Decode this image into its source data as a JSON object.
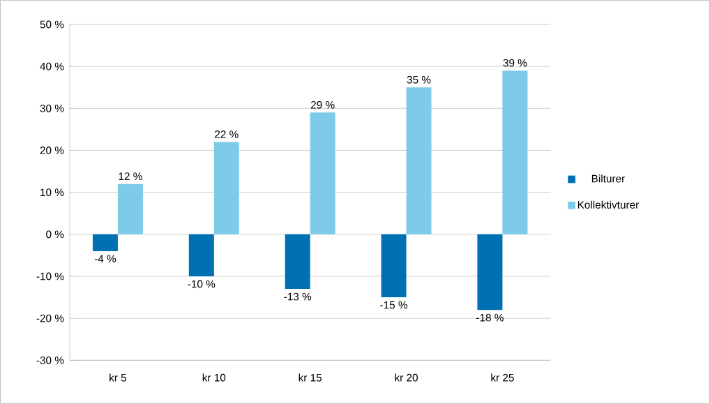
{
  "chart_data": {
    "type": "bar",
    "categories": [
      "kr 5",
      "kr 10",
      "kr 15",
      "kr 20",
      "kr 25"
    ],
    "series": [
      {
        "name": "Bilturer",
        "color": "#0070b5",
        "values": [
          -4,
          -10,
          -13,
          -15,
          -18
        ],
        "value_labels": [
          "-4 %",
          "-10 %",
          "-13 %",
          "-15 %",
          "-18 %"
        ]
      },
      {
        "name": "Kollektivturer",
        "color": "#7dcbe8",
        "values": [
          12,
          22,
          29,
          35,
          39
        ],
        "value_labels": [
          "12 %",
          "22 %",
          "29 %",
          "35 %",
          "39 %"
        ]
      }
    ],
    "ylim": [
      -30,
      50
    ],
    "yticks": [
      {
        "value": -30,
        "label": "-30 %"
      },
      {
        "value": -20,
        "label": "-20 %"
      },
      {
        "value": -10,
        "label": "-10 %"
      },
      {
        "value": 0,
        "label": "0 %"
      },
      {
        "value": 10,
        "label": "10 %"
      },
      {
        "value": 20,
        "label": "20 %"
      },
      {
        "value": 30,
        "label": "30 %"
      },
      {
        "value": 40,
        "label": "40 %"
      },
      {
        "value": 50,
        "label": "50 %"
      }
    ],
    "grid": "y",
    "legend": "right"
  }
}
